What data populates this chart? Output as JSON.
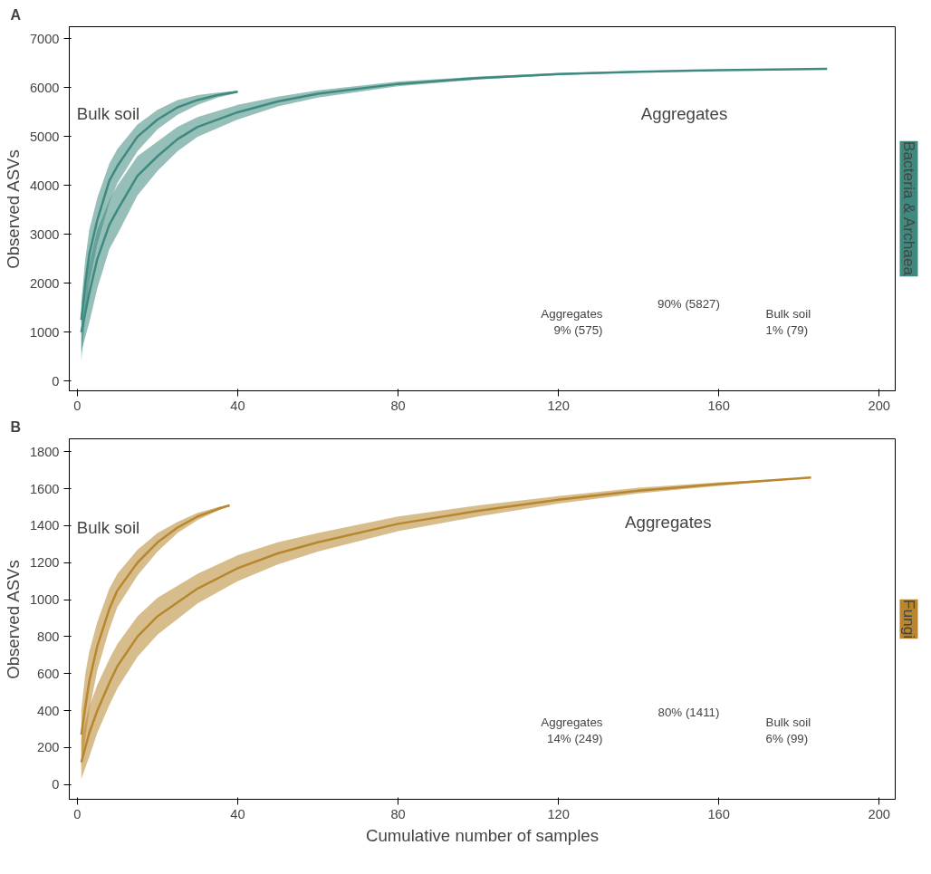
{
  "chart_data": [
    {
      "type": "line",
      "title": "A",
      "ylabel": "Observed ASVs",
      "xlim": [
        -2,
        204
      ],
      "xticks": [
        0,
        40,
        80,
        120,
        160,
        200
      ],
      "ylim": [
        -200,
        7250
      ],
      "yticks": [
        0,
        1000,
        2000,
        3000,
        4000,
        5000,
        6000,
        7000
      ],
      "grid": false,
      "marker": "none",
      "line_style": "solid",
      "annotations": [
        "Bacteria & Archaea",
        "90% (5827)",
        "Aggregates\n9% (575)",
        "Bulk soil\n1% (79)"
      ],
      "series": [
        {
          "name": "Bulk soil",
          "color": "#3f8a7f",
          "x": [
            1,
            2,
            3,
            5,
            8,
            10,
            15,
            20,
            25,
            30,
            35,
            40
          ],
          "values": [
            1250,
            2000,
            2600,
            3300,
            4100,
            4400,
            5000,
            5350,
            5600,
            5750,
            5850,
            5920
          ],
          "lower": [
            400,
            1300,
            2000,
            2800,
            3650,
            4050,
            4700,
            5150,
            5450,
            5650,
            5800,
            5900
          ],
          "upper": [
            1600,
            2500,
            3100,
            3750,
            4450,
            4750,
            5250,
            5550,
            5750,
            5850,
            5900,
            5940
          ]
        },
        {
          "name": "Aggregates",
          "color": "#3f8a7f",
          "x": [
            1,
            3,
            5,
            8,
            10,
            15,
            20,
            25,
            30,
            40,
            50,
            60,
            80,
            100,
            120,
            140,
            160,
            187
          ],
          "values": [
            1000,
            1800,
            2500,
            3200,
            3500,
            4200,
            4600,
            4950,
            5200,
            5500,
            5720,
            5880,
            6080,
            6200,
            6280,
            6330,
            6360,
            6390
          ],
          "lower": [
            600,
            1200,
            1900,
            2700,
            3000,
            3800,
            4300,
            4700,
            5000,
            5350,
            5620,
            5800,
            6030,
            6170,
            6260,
            6320,
            6355,
            6390
          ],
          "upper": [
            1400,
            2400,
            3100,
            3700,
            4000,
            4600,
            4900,
            5200,
            5400,
            5650,
            5820,
            5950,
            6130,
            6230,
            6300,
            6345,
            6370,
            6390
          ]
        }
      ]
    },
    {
      "type": "line",
      "title": "B",
      "xlabel": "Cumulative number of samples",
      "ylabel": "Observed ASVs",
      "xlim": [
        -2,
        204
      ],
      "xticks": [
        0,
        40,
        80,
        120,
        160,
        200
      ],
      "ylim": [
        -80,
        1870
      ],
      "yticks": [
        0,
        200,
        400,
        600,
        800,
        1000,
        1200,
        1400,
        1600,
        1800
      ],
      "grid": false,
      "marker": "none",
      "line_style": "solid",
      "annotations": [
        "Fungi",
        "80% (1411)",
        "Aggregates\n14% (249)",
        "Bulk soil\n6% (99)"
      ],
      "series": [
        {
          "name": "Bulk soil",
          "color": "#b8862e",
          "x": [
            1,
            2,
            3,
            5,
            8,
            10,
            15,
            20,
            25,
            30,
            35,
            38
          ],
          "values": [
            270,
            420,
            560,
            750,
            950,
            1050,
            1200,
            1310,
            1390,
            1450,
            1490,
            1510
          ],
          "lower": [
            90,
            250,
            400,
            620,
            840,
            960,
            1130,
            1260,
            1360,
            1430,
            1480,
            1510
          ],
          "upper": [
            400,
            600,
            720,
            880,
            1060,
            1140,
            1270,
            1360,
            1420,
            1470,
            1500,
            1515
          ]
        },
        {
          "name": "Aggregates",
          "color": "#b8862e",
          "x": [
            1,
            3,
            5,
            8,
            10,
            15,
            20,
            30,
            40,
            50,
            60,
            80,
            100,
            120,
            140,
            160,
            183
          ],
          "values": [
            120,
            280,
            400,
            550,
            640,
            800,
            910,
            1060,
            1170,
            1250,
            1310,
            1410,
            1480,
            1540,
            1590,
            1625,
            1660
          ],
          "lower": [
            30,
            150,
            280,
            430,
            520,
            690,
            810,
            980,
            1100,
            1190,
            1260,
            1370,
            1450,
            1520,
            1575,
            1615,
            1660
          ],
          "upper": [
            250,
            420,
            540,
            680,
            760,
            910,
            1010,
            1140,
            1240,
            1310,
            1360,
            1450,
            1510,
            1560,
            1605,
            1635,
            1660
          ]
        }
      ]
    }
  ]
}
